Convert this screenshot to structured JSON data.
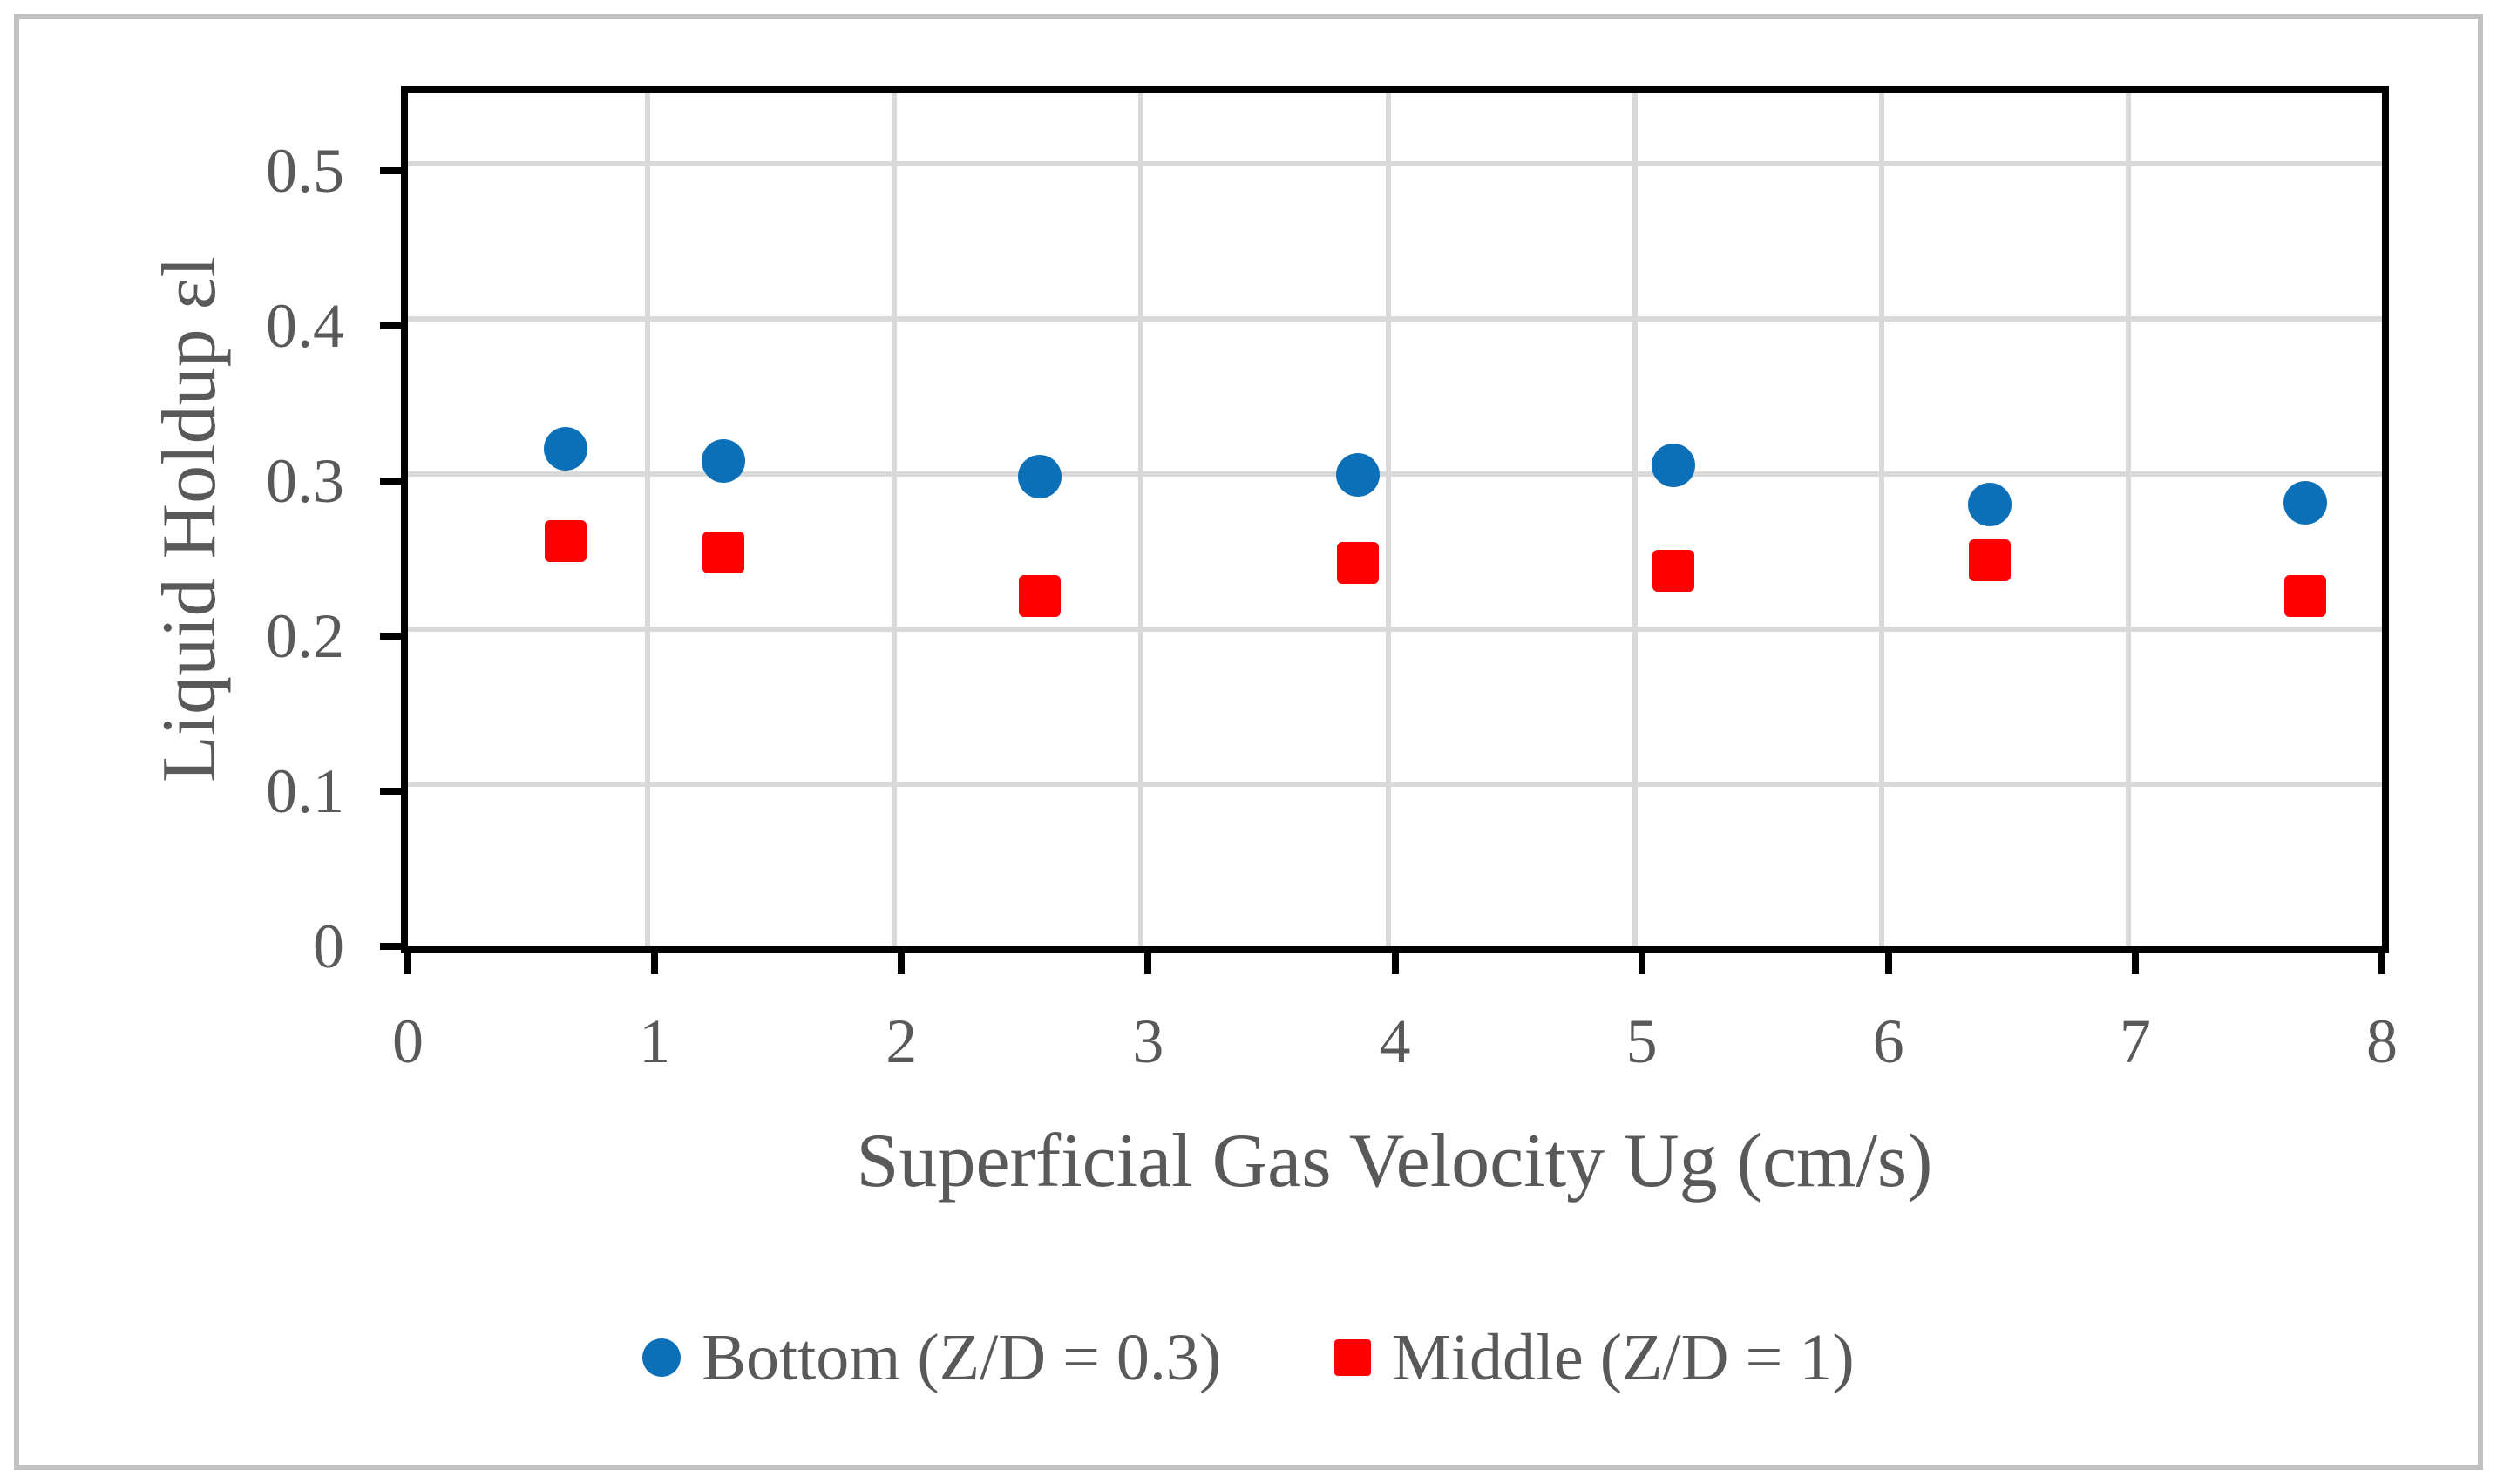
{
  "style": {
    "background": "#FFFFFF",
    "outer_border_color": "#C1C1C1",
    "axis_color": "#000000",
    "grid_color": "#D9D9D9",
    "text_color": "#595959"
  },
  "chart_data": {
    "type": "scatter",
    "title": "",
    "xlabel": "Superficial Gas Velocity Ug (cm/s)",
    "ylabel": "Liquid Holdup εl",
    "xlim": [
      0,
      8
    ],
    "ylim": [
      0,
      0.55
    ],
    "grid": true,
    "legend_position": "bottom-center",
    "x_ticks": [
      {
        "value": 0,
        "label": "0"
      },
      {
        "value": 1,
        "label": "1"
      },
      {
        "value": 2,
        "label": "2"
      },
      {
        "value": 3,
        "label": "3"
      },
      {
        "value": 4,
        "label": "4"
      },
      {
        "value": 5,
        "label": "5"
      },
      {
        "value": 6,
        "label": "6"
      },
      {
        "value": 7,
        "label": "7"
      },
      {
        "value": 8,
        "label": "8"
      }
    ],
    "y_ticks": [
      {
        "value": 0,
        "label": "0"
      },
      {
        "value": 0.1,
        "label": "0.1"
      },
      {
        "value": 0.2,
        "label": "0.2"
      },
      {
        "value": 0.3,
        "label": "0.3"
      },
      {
        "value": 0.4,
        "label": "0.4"
      },
      {
        "value": 0.5,
        "label": "0.5"
      }
    ],
    "v_gridlines": [
      1,
      2,
      3,
      4,
      5,
      6,
      7
    ],
    "h_gridlines": [
      0.1,
      0.2,
      0.3,
      0.4,
      0.5
    ],
    "series": [
      {
        "name": "Bottom (Z/D = 0.3)",
        "marker": "circle",
        "color": "#0C70B8",
        "points": [
          [
            0.64,
            0.321
          ],
          [
            1.28,
            0.313
          ],
          [
            2.56,
            0.303
          ],
          [
            3.85,
            0.304
          ],
          [
            5.13,
            0.31
          ],
          [
            6.41,
            0.285
          ],
          [
            7.69,
            0.286
          ]
        ]
      },
      {
        "name": "Middle (Z/D = 1)",
        "marker": "square",
        "color": "#FF0000",
        "points": [
          [
            0.64,
            0.261
          ],
          [
            1.28,
            0.254
          ],
          [
            2.56,
            0.226
          ],
          [
            3.85,
            0.247
          ],
          [
            5.13,
            0.242
          ],
          [
            6.41,
            0.249
          ],
          [
            7.69,
            0.226
          ]
        ]
      }
    ]
  }
}
